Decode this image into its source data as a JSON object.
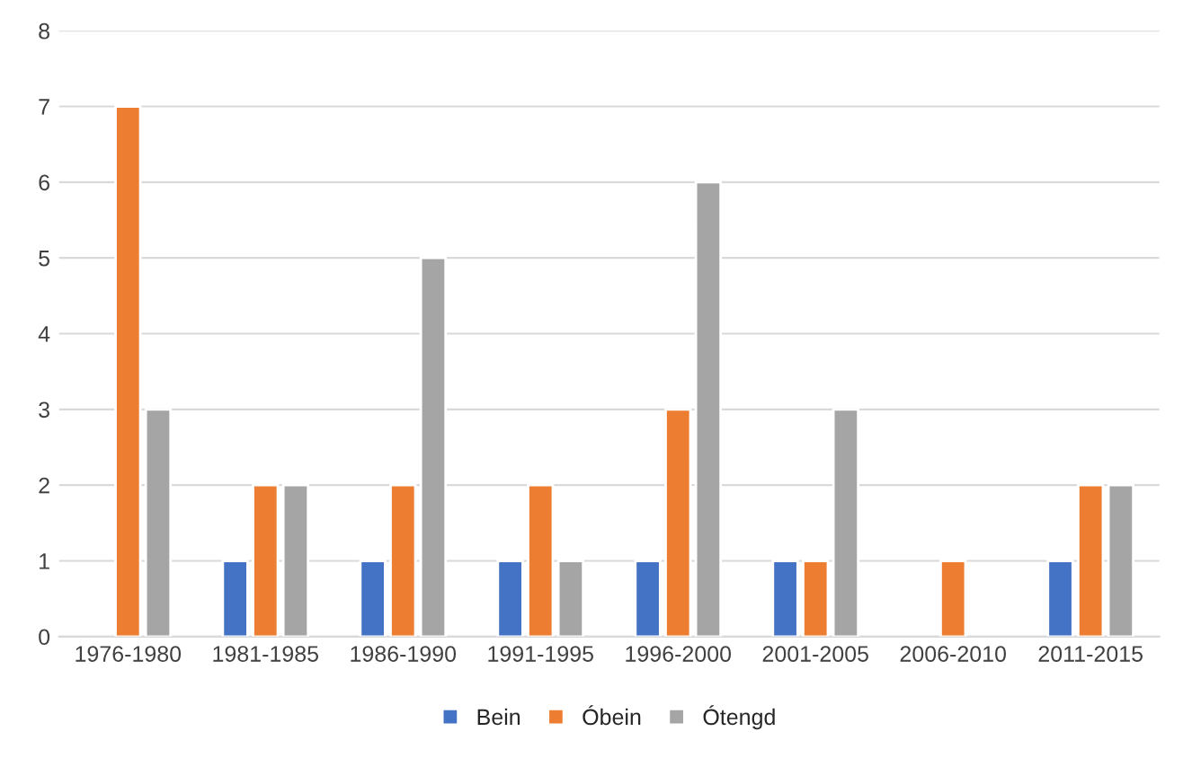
{
  "chart_data": {
    "type": "bar",
    "categories": [
      "1976-1980",
      "1981-1985",
      "1986-1990",
      "1991-1995",
      "1996-2000",
      "2001-2005",
      "2006-2010",
      "2011-2015"
    ],
    "series": [
      {
        "name": "Bein",
        "color": "#4472c4",
        "values": [
          null,
          1,
          1,
          1,
          1,
          1,
          null,
          1
        ]
      },
      {
        "name": "Óbein",
        "color": "#ed7d31",
        "values": [
          7,
          2,
          2,
          2,
          3,
          1,
          1,
          2
        ]
      },
      {
        "name": "Ótengd",
        "color": "#a5a5a5",
        "values": [
          3,
          2,
          5,
          1,
          6,
          3,
          null,
          2
        ]
      }
    ],
    "ylim": [
      0,
      8
    ],
    "yticks": [
      0,
      1,
      2,
      3,
      4,
      5,
      6,
      7,
      8
    ],
    "grid": "y",
    "legend": "bottom"
  }
}
